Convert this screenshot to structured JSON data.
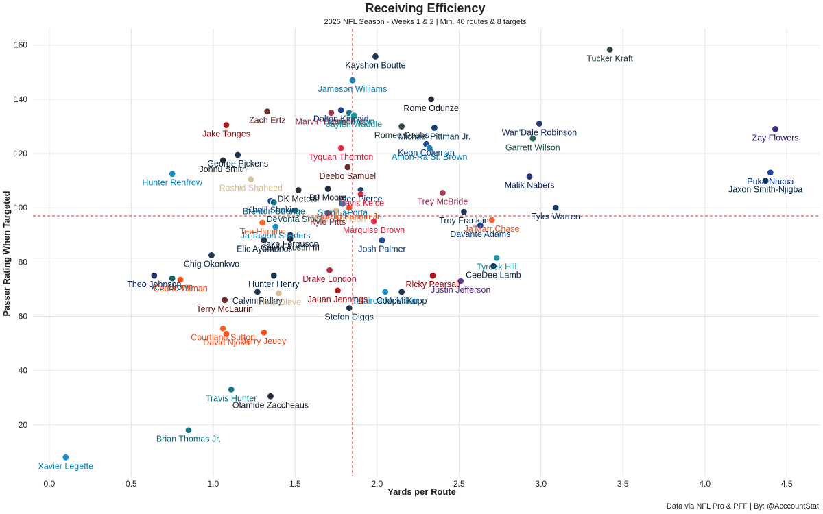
{
  "chart_data": {
    "type": "scatter",
    "title": "Receiving Efficiency",
    "subtitle": "2025 NFL Season - Weeks 1 & 2 | Min. 40 routes & 8 targets",
    "xlabel": "Yards per Route",
    "ylabel": "Passer Rating When Targeted",
    "caption": "Data via NFL Pro & PFF | By: @AcccountStat",
    "xlim": [
      -0.1,
      4.7
    ],
    "ylim": [
      1,
      166
    ],
    "xticks": [
      "0.0",
      "0.5",
      "1.0",
      "1.5",
      "2.0",
      "2.5",
      "3.0",
      "3.5",
      "4.0",
      "4.5"
    ],
    "yticks": [
      "20",
      "40",
      "60",
      "80",
      "100",
      "120",
      "140",
      "160"
    ],
    "reference_lines": {
      "x": 1.85,
      "y": 97,
      "style": "dashed",
      "color": "#e8463c"
    },
    "grid": true,
    "points": [
      {
        "name": "Tucker Kraft",
        "x": 3.42,
        "y": 158.3,
        "color": "#203731"
      },
      {
        "name": "Kayshon Boutte",
        "x": 1.99,
        "y": 155.8,
        "color": "#002244"
      },
      {
        "name": "Jameson Williams",
        "x": 1.85,
        "y": 147.0,
        "color": "#0076B6"
      },
      {
        "name": "Rome Odunze",
        "x": 2.33,
        "y": 140.0,
        "color": "#0B162A"
      },
      {
        "name": "Zach Ertz",
        "x": 1.33,
        "y": 135.5,
        "color": "#5A1414"
      },
      {
        "name": "Dalton Kincaid",
        "x": 1.78,
        "y": 136.0,
        "color": "#00338D"
      },
      {
        "name": "Dyami Brown",
        "x": 1.83,
        "y": 135.0,
        "color": "#006778"
      },
      {
        "name": "Marvin Harrison Jr.",
        "x": 1.72,
        "y": 135.0,
        "color": "#97233F"
      },
      {
        "name": "Jaylen Waddle",
        "x": 1.86,
        "y": 134.0,
        "color": "#008E97"
      },
      {
        "name": "Romeo Doubs",
        "x": 2.15,
        "y": 130.0,
        "color": "#203731"
      },
      {
        "name": "Wan'Dale Robinson",
        "x": 2.99,
        "y": 131.0,
        "color": "#0B2265"
      },
      {
        "name": "Jake Tonges",
        "x": 1.08,
        "y": 130.5,
        "color": "#AA0000"
      },
      {
        "name": "Zay Flowers",
        "x": 4.43,
        "y": 129.0,
        "color": "#241773"
      },
      {
        "name": "Michael Pittman Jr.",
        "x": 2.35,
        "y": 129.5,
        "color": "#002C5F"
      },
      {
        "name": "Garrett Wilson",
        "x": 2.95,
        "y": 125.5,
        "color": "#125740"
      },
      {
        "name": "Keon Coleman",
        "x": 2.3,
        "y": 123.5,
        "color": "#00338D"
      },
      {
        "name": "Amon-Ra St. Brown",
        "x": 2.32,
        "y": 122.0,
        "color": "#0076B6"
      },
      {
        "name": "Tyquan Thornton",
        "x": 1.78,
        "y": 122.0,
        "color": "#E31837"
      },
      {
        "name": "George Pickens",
        "x": 1.15,
        "y": 119.5,
        "color": "#041E42"
      },
      {
        "name": "Jonnu Smith",
        "x": 1.06,
        "y": 117.5,
        "color": "#101820"
      },
      {
        "name": "Deebo Samuel",
        "x": 1.82,
        "y": 115.0,
        "color": "#5A1414"
      },
      {
        "name": "Puka Nacua",
        "x": 4.4,
        "y": 113.0,
        "color": "#003594"
      },
      {
        "name": "Hunter Renfrow",
        "x": 0.75,
        "y": 112.5,
        "color": "#0085CA"
      },
      {
        "name": "Malik Nabers",
        "x": 2.93,
        "y": 111.5,
        "color": "#0B2265"
      },
      {
        "name": "Rashid Shaheed",
        "x": 1.23,
        "y": 110.5,
        "color": "#D3BC8D"
      },
      {
        "name": "Jaxon Smith-Njigba",
        "x": 4.37,
        "y": 110.0,
        "color": "#002244"
      },
      {
        "name": "DK Metcalf",
        "x": 1.52,
        "y": 106.5,
        "color": "#101820"
      },
      {
        "name": "DJ Moore",
        "x": 1.7,
        "y": 107.0,
        "color": "#0B162A"
      },
      {
        "name": "Alec Pierce",
        "x": 1.9,
        "y": 106.5,
        "color": "#002C5F"
      },
      {
        "name": "Trey McBride",
        "x": 2.4,
        "y": 105.5,
        "color": "#97233F"
      },
      {
        "name": "Travis Kelce",
        "x": 1.9,
        "y": 105.0,
        "color": "#E31837"
      },
      {
        "name": "Khalil Shakir",
        "x": 1.35,
        "y": 102.5,
        "color": "#00338D"
      },
      {
        "name": "Brenton Strange",
        "x": 1.37,
        "y": 102.0,
        "color": "#006778"
      },
      {
        "name": "Sam LaPorta",
        "x": 1.79,
        "y": 101.5,
        "color": "#0076B6"
      },
      {
        "name": "Tyler Warren",
        "x": 3.09,
        "y": 100.0,
        "color": "#002C5F"
      },
      {
        "name": "DeVonta Smith",
        "x": 1.5,
        "y": 99.0,
        "color": "#004C54"
      },
      {
        "name": "Juwan Johnson",
        "x": 1.75,
        "y": 99.0,
        "color": "#D3BC8D"
      },
      {
        "name": "Harold Fannin Jr.",
        "x": 1.83,
        "y": 100.0,
        "color": "#FF3C00"
      },
      {
        "name": "Troy Franklin",
        "x": 2.53,
        "y": 98.5,
        "color": "#002244"
      },
      {
        "name": "Kyle Pitts",
        "x": 1.7,
        "y": 98.0,
        "color": "#A71930"
      },
      {
        "name": "Ja'Marr Chase",
        "x": 2.7,
        "y": 95.5,
        "color": "#FB4F14"
      },
      {
        "name": "Marquise Brown",
        "x": 1.98,
        "y": 95.0,
        "color": "#E31837"
      },
      {
        "name": "Tee Higgins",
        "x": 1.3,
        "y": 94.5,
        "color": "#FB4F14"
      },
      {
        "name": "Davante Adams",
        "x": 2.63,
        "y": 93.5,
        "color": "#003594"
      },
      {
        "name": "Ja'Tavion Sanders",
        "x": 1.38,
        "y": 93.0,
        "color": "#0085CA"
      },
      {
        "name": "Jake Ferguson",
        "x": 1.47,
        "y": 90.0,
        "color": "#041E42"
      },
      {
        "name": "Calvin Austin III",
        "x": 1.47,
        "y": 88.5,
        "color": "#101820"
      },
      {
        "name": "Josh Palmer",
        "x": 2.03,
        "y": 88.0,
        "color": "#00338D"
      },
      {
        "name": "Elic Ayomanor",
        "x": 1.31,
        "y": 88.0,
        "color": "#0C2340"
      },
      {
        "name": "Tyreek Hill",
        "x": 2.73,
        "y": 81.5,
        "color": "#008E97"
      },
      {
        "name": "Chig Okonkwo",
        "x": 0.99,
        "y": 82.5,
        "color": "#0C2340"
      },
      {
        "name": "CeeDee Lamb",
        "x": 2.71,
        "y": 78.5,
        "color": "#041E42"
      },
      {
        "name": "Drake London",
        "x": 1.71,
        "y": 77.0,
        "color": "#A71930"
      },
      {
        "name": "Ricky Pearsall",
        "x": 2.34,
        "y": 75.0,
        "color": "#AA0000"
      },
      {
        "name": "Theo Johnson",
        "x": 0.64,
        "y": 75.0,
        "color": "#0B2265"
      },
      {
        "name": "Hunter Henry",
        "x": 1.37,
        "y": 75.0,
        "color": "#002244"
      },
      {
        "name": "A.J. Brown",
        "x": 0.75,
        "y": 74.0,
        "color": "#004C54"
      },
      {
        "name": "Cedric Tillman",
        "x": 0.8,
        "y": 73.5,
        "color": "#FF3C00"
      },
      {
        "name": "Justin Jefferson",
        "x": 2.51,
        "y": 73.0,
        "color": "#4F2683"
      },
      {
        "name": "Calvin Ridley",
        "x": 1.27,
        "y": 69.0,
        "color": "#0C2340"
      },
      {
        "name": "Tetairoa McMillan",
        "x": 2.05,
        "y": 69.0,
        "color": "#0085CA"
      },
      {
        "name": "Cooper Kupp",
        "x": 2.15,
        "y": 69.0,
        "color": "#002244"
      },
      {
        "name": "Jauan Jennings",
        "x": 1.76,
        "y": 69.5,
        "color": "#AA0000"
      },
      {
        "name": "Chris Olave",
        "x": 1.4,
        "y": 68.5,
        "color": "#D3BC8D"
      },
      {
        "name": "Terry McLaurin",
        "x": 1.07,
        "y": 66.0,
        "color": "#5A1414"
      },
      {
        "name": "Stefon Diggs",
        "x": 1.83,
        "y": 63.0,
        "color": "#002244"
      },
      {
        "name": "Courtland Sutton",
        "x": 1.06,
        "y": 55.5,
        "color": "#FB4F14"
      },
      {
        "name": "Jerry Jeudy",
        "x": 1.31,
        "y": 54.0,
        "color": "#FF3C00"
      },
      {
        "name": "David Njoku",
        "x": 1.08,
        "y": 53.5,
        "color": "#FF3C00"
      },
      {
        "name": "Travis Hunter",
        "x": 1.11,
        "y": 33.0,
        "color": "#006778"
      },
      {
        "name": "Olamide Zaccheaus",
        "x": 1.35,
        "y": 30.5,
        "color": "#0B162A"
      },
      {
        "name": "Brian Thomas Jr.",
        "x": 0.85,
        "y": 18.0,
        "color": "#006778"
      },
      {
        "name": "Xavier Legette",
        "x": 0.1,
        "y": 8.0,
        "color": "#0085CA"
      }
    ]
  }
}
